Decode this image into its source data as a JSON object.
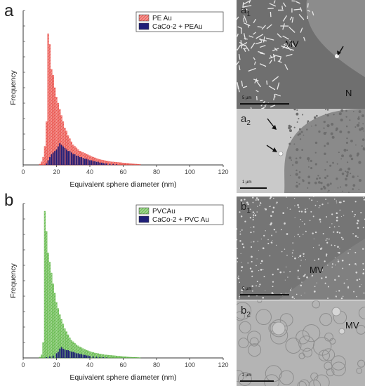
{
  "panels": [
    {
      "letter": "a"
    },
    {
      "letter": "b"
    }
  ],
  "chart_data": [
    {
      "type": "bar",
      "xlabel": "Equivalent sphere diameter (nm)",
      "ylabel": "Frequency",
      "xlim": [
        0,
        120
      ],
      "xticks": [
        0,
        20,
        40,
        60,
        80,
        100,
        120
      ],
      "legend_position": "top-right",
      "series": [
        {
          "name": "PE Au",
          "color": "#e8413a",
          "hatch": true,
          "x": [
            10,
            11,
            12,
            13,
            14,
            15,
            16,
            17,
            18,
            19,
            20,
            21,
            22,
            23,
            24,
            25,
            26,
            27,
            28,
            29,
            30,
            31,
            32,
            33,
            34,
            35,
            36,
            37,
            38,
            39,
            40,
            41,
            42,
            43,
            44,
            45,
            46,
            47,
            48,
            49,
            50,
            51,
            52,
            53,
            54,
            55,
            56,
            57,
            58,
            59,
            60,
            61,
            62,
            63,
            64,
            65,
            66,
            67,
            68,
            69,
            70
          ],
          "values": [
            0.5,
            2,
            5,
            12,
            28,
            85,
            78,
            62,
            58,
            50,
            44,
            40,
            36,
            32,
            28,
            24,
            22,
            19,
            17,
            15,
            13,
            12,
            11,
            10,
            9,
            8.5,
            8,
            7.5,
            7,
            6.5,
            6,
            5.5,
            5,
            4.6,
            4.2,
            3.8,
            3.5,
            3.2,
            3,
            2.8,
            2.6,
            2.4,
            2.2,
            2,
            1.9,
            1.8,
            1.7,
            1.6,
            1.5,
            1.4,
            1.3,
            1.2,
            1.1,
            1,
            0.9,
            0.8,
            0.7,
            0.6,
            0.5,
            0.4,
            0.3
          ]
        },
        {
          "name": "CaCo-2 + PEAu",
          "color": "#1f1f78",
          "hatch": false,
          "x": [
            14,
            15,
            16,
            17,
            18,
            19,
            20,
            21,
            22,
            23,
            24,
            25,
            26,
            27,
            28,
            29,
            30,
            31,
            32,
            33,
            34,
            35,
            36,
            37,
            38,
            39,
            40,
            41,
            42,
            43,
            44,
            45,
            46,
            47,
            48,
            49,
            50,
            52,
            54,
            56
          ],
          "values": [
            1,
            3,
            5,
            7,
            8,
            9,
            10,
            12,
            14,
            13,
            12,
            11,
            10,
            9,
            9,
            8,
            7,
            7,
            6,
            6,
            5,
            5,
            4.5,
            4,
            4,
            3.5,
            3,
            3,
            2.5,
            2.5,
            2,
            2,
            1.5,
            1.5,
            1.2,
            1,
            1,
            0.8,
            0.6,
            0.4
          ]
        }
      ]
    },
    {
      "type": "bar",
      "xlabel": "Equivalent sphere diameter (nm)",
      "ylabel": "Frequency",
      "xlim": [
        0,
        120
      ],
      "xticks": [
        0,
        20,
        40,
        60,
        80,
        100,
        120
      ],
      "legend_position": "top-right",
      "series": [
        {
          "name": "PVCAu",
          "color": "#55b33a",
          "hatch": true,
          "x": [
            10,
            11,
            12,
            13,
            14,
            15,
            16,
            17,
            18,
            19,
            20,
            21,
            22,
            23,
            24,
            25,
            26,
            27,
            28,
            29,
            30,
            31,
            32,
            33,
            34,
            35,
            36,
            37,
            38,
            39,
            40,
            41,
            42,
            43,
            44,
            45,
            46,
            47,
            48,
            49,
            50,
            51,
            52,
            53,
            54,
            55,
            56,
            57,
            58,
            59,
            60,
            61,
            62,
            63,
            64,
            65,
            66,
            67,
            68,
            69,
            70
          ],
          "values": [
            0.5,
            2,
            10,
            95,
            82,
            68,
            62,
            55,
            48,
            42,
            36,
            32,
            28,
            25,
            22,
            19,
            17,
            15,
            13,
            11.5,
            10.5,
            9.5,
            8.5,
            7.8,
            7.2,
            6.6,
            6,
            5.5,
            5,
            4.6,
            4.2,
            3.8,
            3.5,
            3.2,
            3,
            2.8,
            2.6,
            2.4,
            2.2,
            2,
            1.9,
            1.8,
            1.7,
            1.6,
            1.5,
            1.4,
            1.3,
            1.2,
            1.1,
            1,
            0.9,
            0.8,
            0.7,
            0.6,
            0.5,
            0.45,
            0.4,
            0.35,
            0.3,
            0.25,
            0.2
          ]
        },
        {
          "name": "CaCo-2 + PVC Au",
          "color": "#1f1f78",
          "hatch": false,
          "x": [
            14,
            16,
            18,
            20,
            21,
            22,
            23,
            24,
            25,
            26,
            27,
            28,
            29,
            30,
            31,
            32,
            33,
            34,
            35,
            36,
            37,
            38,
            39,
            40,
            42,
            44,
            46,
            48,
            50
          ],
          "values": [
            0.5,
            1,
            1.5,
            3,
            4,
            6,
            7,
            6,
            5.5,
            5,
            5,
            4.5,
            4,
            4,
            3.5,
            3,
            3,
            2.5,
            2.5,
            2,
            2,
            1.6,
            1.5,
            1.2,
            1,
            0.8,
            0.6,
            0.5,
            0.3
          ]
        }
      ]
    }
  ],
  "micrographs": [
    {
      "label": "a",
      "sub": "1",
      "annotations": [
        "MV",
        "N"
      ],
      "scalebar": "5 µm"
    },
    {
      "label": "a",
      "sub": "2",
      "annotations": [],
      "scalebar": "1 µm"
    },
    {
      "label": "b",
      "sub": "1",
      "annotations": [
        "MV"
      ],
      "scalebar": "5 µm"
    },
    {
      "label": "b",
      "sub": "2",
      "annotations": [
        "MV"
      ],
      "scalebar": "2 µm"
    }
  ]
}
